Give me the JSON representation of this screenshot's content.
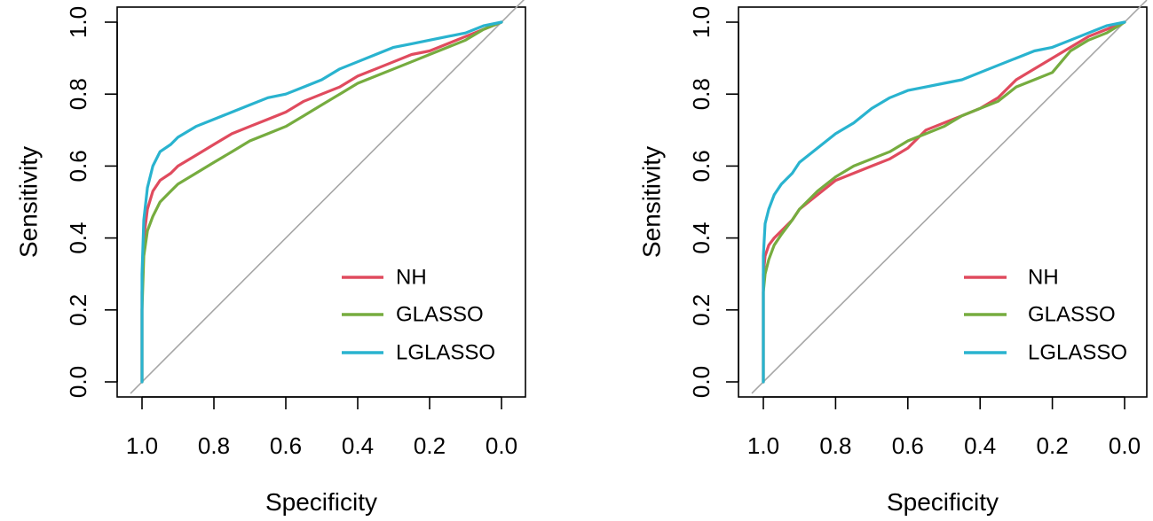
{
  "chart_data": [
    {
      "type": "line",
      "subtype": "roc",
      "title": "",
      "xlabel": "Specificity",
      "ylabel": "Sensitivity",
      "xlim": [
        1.0,
        0.0
      ],
      "ylim": [
        0.0,
        1.0
      ],
      "x_reversed": true,
      "x_ticks": [
        "1.0",
        "0.8",
        "0.6",
        "0.4",
        "0.2",
        "0.0"
      ],
      "y_ticks": [
        "0.0",
        "0.2",
        "0.4",
        "0.6",
        "0.8",
        "1.0"
      ],
      "legend_position": "bottom-right",
      "reference_line": {
        "from": [
          1.0,
          0.0
        ],
        "to": [
          0.0,
          1.0
        ],
        "color": "#a6a6a6"
      },
      "series": [
        {
          "name": "NH",
          "color": "#e04b5e",
          "points": [
            [
              1.0,
              0.0
            ],
            [
              1.0,
              0.25
            ],
            [
              0.995,
              0.4
            ],
            [
              0.985,
              0.48
            ],
            [
              0.97,
              0.53
            ],
            [
              0.95,
              0.56
            ],
            [
              0.92,
              0.58
            ],
            [
              0.9,
              0.6
            ],
            [
              0.85,
              0.63
            ],
            [
              0.8,
              0.66
            ],
            [
              0.75,
              0.69
            ],
            [
              0.7,
              0.71
            ],
            [
              0.65,
              0.73
            ],
            [
              0.6,
              0.75
            ],
            [
              0.55,
              0.78
            ],
            [
              0.5,
              0.8
            ],
            [
              0.45,
              0.82
            ],
            [
              0.4,
              0.85
            ],
            [
              0.35,
              0.87
            ],
            [
              0.3,
              0.89
            ],
            [
              0.25,
              0.91
            ],
            [
              0.2,
              0.92
            ],
            [
              0.15,
              0.94
            ],
            [
              0.1,
              0.96
            ],
            [
              0.05,
              0.98
            ],
            [
              0.0,
              1.0
            ]
          ]
        },
        {
          "name": "GLASSO",
          "color": "#76ac3f",
          "points": [
            [
              1.0,
              0.0
            ],
            [
              1.0,
              0.2
            ],
            [
              0.995,
              0.35
            ],
            [
              0.985,
              0.42
            ],
            [
              0.97,
              0.46
            ],
            [
              0.95,
              0.5
            ],
            [
              0.92,
              0.53
            ],
            [
              0.9,
              0.55
            ],
            [
              0.85,
              0.58
            ],
            [
              0.8,
              0.61
            ],
            [
              0.75,
              0.64
            ],
            [
              0.7,
              0.67
            ],
            [
              0.65,
              0.69
            ],
            [
              0.6,
              0.71
            ],
            [
              0.55,
              0.74
            ],
            [
              0.5,
              0.77
            ],
            [
              0.45,
              0.8
            ],
            [
              0.4,
              0.83
            ],
            [
              0.35,
              0.85
            ],
            [
              0.3,
              0.87
            ],
            [
              0.25,
              0.89
            ],
            [
              0.2,
              0.91
            ],
            [
              0.15,
              0.93
            ],
            [
              0.1,
              0.95
            ],
            [
              0.05,
              0.98
            ],
            [
              0.0,
              1.0
            ]
          ]
        },
        {
          "name": "LGLASSO",
          "color": "#29b3cf",
          "points": [
            [
              1.0,
              0.0
            ],
            [
              1.0,
              0.3
            ],
            [
              0.995,
              0.45
            ],
            [
              0.985,
              0.54
            ],
            [
              0.97,
              0.6
            ],
            [
              0.95,
              0.64
            ],
            [
              0.92,
              0.66
            ],
            [
              0.9,
              0.68
            ],
            [
              0.85,
              0.71
            ],
            [
              0.8,
              0.73
            ],
            [
              0.75,
              0.75
            ],
            [
              0.7,
              0.77
            ],
            [
              0.65,
              0.79
            ],
            [
              0.6,
              0.8
            ],
            [
              0.55,
              0.82
            ],
            [
              0.5,
              0.84
            ],
            [
              0.45,
              0.87
            ],
            [
              0.4,
              0.89
            ],
            [
              0.35,
              0.91
            ],
            [
              0.3,
              0.93
            ],
            [
              0.25,
              0.94
            ],
            [
              0.2,
              0.95
            ],
            [
              0.15,
              0.96
            ],
            [
              0.1,
              0.97
            ],
            [
              0.05,
              0.99
            ],
            [
              0.0,
              1.0
            ]
          ]
        }
      ]
    },
    {
      "type": "line",
      "subtype": "roc",
      "title": "",
      "xlabel": "Specificity",
      "ylabel": "Sensitivity",
      "xlim": [
        1.0,
        0.0
      ],
      "ylim": [
        0.0,
        1.0
      ],
      "x_reversed": true,
      "x_ticks": [
        "1.0",
        "0.8",
        "0.6",
        "0.4",
        "0.2",
        "0.0"
      ],
      "y_ticks": [
        "0.0",
        "0.2",
        "0.4",
        "0.6",
        "0.8",
        "1.0"
      ],
      "legend_position": "bottom-right",
      "reference_line": {
        "from": [
          1.0,
          0.0
        ],
        "to": [
          0.0,
          1.0
        ],
        "color": "#a6a6a6"
      },
      "series": [
        {
          "name": "NH",
          "color": "#e04b5e",
          "points": [
            [
              1.0,
              0.0
            ],
            [
              1.0,
              0.3
            ],
            [
              0.995,
              0.35
            ],
            [
              0.985,
              0.38
            ],
            [
              0.97,
              0.4
            ],
            [
              0.95,
              0.42
            ],
            [
              0.92,
              0.45
            ],
            [
              0.9,
              0.48
            ],
            [
              0.85,
              0.52
            ],
            [
              0.8,
              0.56
            ],
            [
              0.75,
              0.58
            ],
            [
              0.7,
              0.6
            ],
            [
              0.65,
              0.62
            ],
            [
              0.6,
              0.65
            ],
            [
              0.55,
              0.7
            ],
            [
              0.5,
              0.72
            ],
            [
              0.45,
              0.74
            ],
            [
              0.4,
              0.76
            ],
            [
              0.35,
              0.79
            ],
            [
              0.3,
              0.84
            ],
            [
              0.25,
              0.87
            ],
            [
              0.2,
              0.9
            ],
            [
              0.15,
              0.93
            ],
            [
              0.1,
              0.96
            ],
            [
              0.05,
              0.98
            ],
            [
              0.0,
              1.0
            ]
          ]
        },
        {
          "name": "GLASSO",
          "color": "#76ac3f",
          "points": [
            [
              1.0,
              0.0
            ],
            [
              1.0,
              0.25
            ],
            [
              0.995,
              0.3
            ],
            [
              0.985,
              0.34
            ],
            [
              0.97,
              0.38
            ],
            [
              0.95,
              0.41
            ],
            [
              0.92,
              0.45
            ],
            [
              0.9,
              0.48
            ],
            [
              0.85,
              0.53
            ],
            [
              0.8,
              0.57
            ],
            [
              0.75,
              0.6
            ],
            [
              0.7,
              0.62
            ],
            [
              0.65,
              0.64
            ],
            [
              0.6,
              0.67
            ],
            [
              0.55,
              0.69
            ],
            [
              0.5,
              0.71
            ],
            [
              0.45,
              0.74
            ],
            [
              0.4,
              0.76
            ],
            [
              0.35,
              0.78
            ],
            [
              0.3,
              0.82
            ],
            [
              0.25,
              0.84
            ],
            [
              0.2,
              0.86
            ],
            [
              0.15,
              0.92
            ],
            [
              0.1,
              0.95
            ],
            [
              0.05,
              0.97
            ],
            [
              0.0,
              1.0
            ]
          ]
        },
        {
          "name": "LGLASSO",
          "color": "#29b3cf",
          "points": [
            [
              1.0,
              0.0
            ],
            [
              1.0,
              0.35
            ],
            [
              0.995,
              0.44
            ],
            [
              0.985,
              0.48
            ],
            [
              0.97,
              0.52
            ],
            [
              0.95,
              0.55
            ],
            [
              0.92,
              0.58
            ],
            [
              0.9,
              0.61
            ],
            [
              0.85,
              0.65
            ],
            [
              0.8,
              0.69
            ],
            [
              0.75,
              0.72
            ],
            [
              0.7,
              0.76
            ],
            [
              0.65,
              0.79
            ],
            [
              0.6,
              0.81
            ],
            [
              0.55,
              0.82
            ],
            [
              0.5,
              0.83
            ],
            [
              0.45,
              0.84
            ],
            [
              0.4,
              0.86
            ],
            [
              0.35,
              0.88
            ],
            [
              0.3,
              0.9
            ],
            [
              0.25,
              0.92
            ],
            [
              0.2,
              0.93
            ],
            [
              0.15,
              0.95
            ],
            [
              0.1,
              0.97
            ],
            [
              0.05,
              0.99
            ],
            [
              0.0,
              1.0
            ]
          ]
        }
      ]
    }
  ]
}
